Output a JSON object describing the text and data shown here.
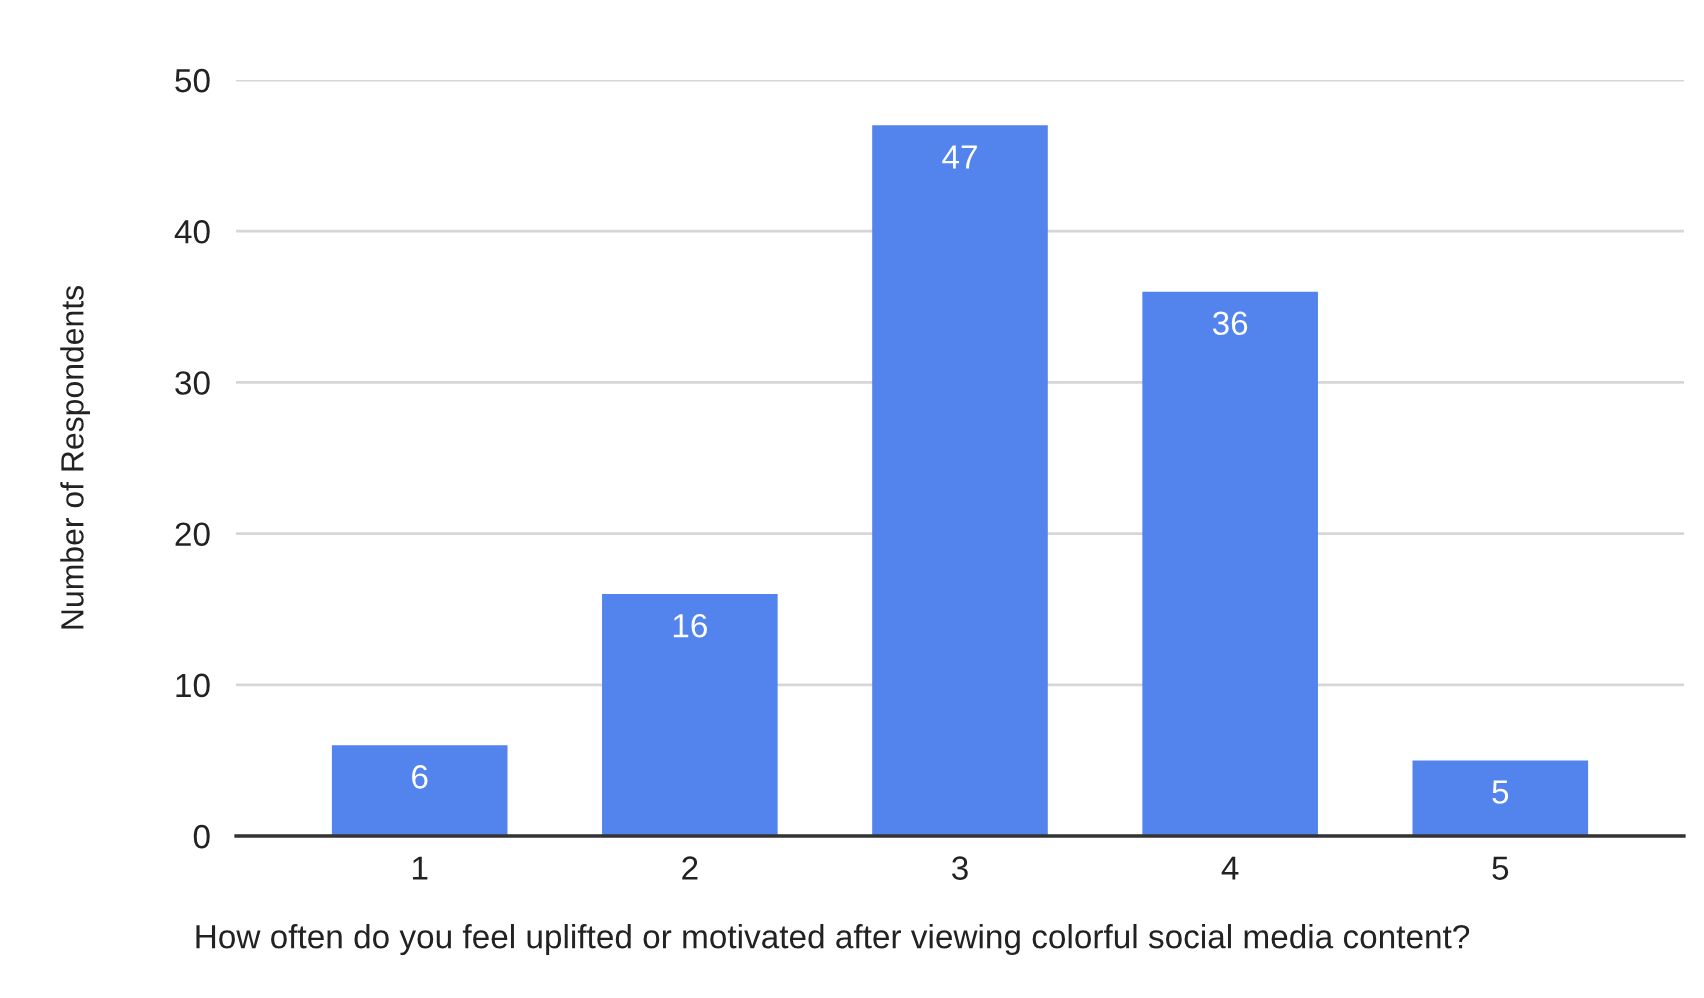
{
  "chart_data": {
    "type": "bar",
    "xlabel": "How often do you feel uplifted or motivated after viewing colorful social media content?",
    "ylabel": "Number of Respondents",
    "categories": [
      "1",
      "2",
      "3",
      "4",
      "5"
    ],
    "values": [
      6,
      16,
      47,
      36,
      5
    ],
    "color": "#5383ec",
    "ylim": [
      0,
      50
    ],
    "yticks": [
      0,
      10,
      20,
      30,
      40,
      50
    ],
    "grid": "y",
    "data_labels": true
  }
}
